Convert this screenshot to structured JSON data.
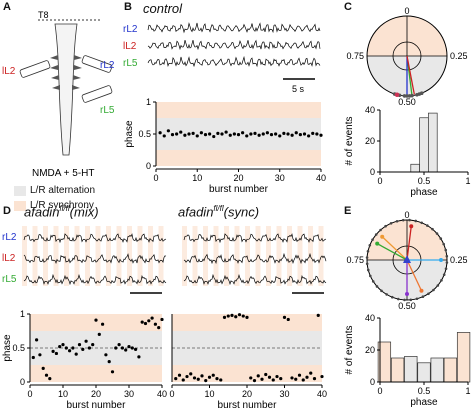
{
  "panels": {
    "A": "A",
    "B": "B",
    "C": "C",
    "D": "D",
    "E": "E"
  },
  "panelA": {
    "level": "T8",
    "left_label": "lL2",
    "right_top_label": "rL2",
    "right_bottom_label": "rL5",
    "condition": "NMDA + 5-HT",
    "legend": [
      {
        "label": "L/R alternation",
        "color": "#e8e8e8"
      },
      {
        "label": "L/R synchrony",
        "color": "#fbe3d2"
      }
    ]
  },
  "panelB": {
    "title": "control",
    "traces": [
      {
        "label": "rL2",
        "color": "#2233cc"
      },
      {
        "label": "lL2",
        "color": "#cc2222"
      },
      {
        "label": "rL5",
        "color": "#33aa33"
      }
    ],
    "scale_label": "5 s"
  },
  "panelD": {
    "title_mix": "afadin",
    "title_mix_sup": "fl/fl",
    "title_mix_suffix": "(mix)",
    "title_sync": "afadin",
    "title_sync_sup": "fl/fl",
    "title_sync_suffix": "(sync)",
    "traces": [
      {
        "label": "rL2",
        "color": "#2233cc"
      },
      {
        "label": "lL2",
        "color": "#cc2222"
      },
      {
        "label": "rL5",
        "color": "#33aa33"
      }
    ]
  },
  "polarC": {
    "top": "0",
    "left": "0.75",
    "right": "0.25",
    "bottom": "0.50"
  },
  "polarE": {
    "top": "0",
    "left": "0.75",
    "right": "0.25",
    "bottom": "0.50"
  },
  "colors": {
    "alternation": "#e8e8e8",
    "synchrony": "#fbe3d2",
    "rL2": "#2233cc",
    "lL2": "#cc2222",
    "rL5": "#33aa33"
  },
  "chart_data": [
    {
      "id": "B-phase",
      "type": "scatter",
      "xlabel": "burst number",
      "ylabel": "phase",
      "xlim": [
        0,
        40
      ],
      "ylim": [
        0,
        1
      ],
      "xticks": [
        0,
        10,
        20,
        30,
        40
      ],
      "yticks": [
        0,
        0.5,
        1
      ],
      "points": [
        [
          1,
          0.52
        ],
        [
          2,
          0.47
        ],
        [
          3,
          0.55
        ],
        [
          4,
          0.49
        ],
        [
          5,
          0.5
        ],
        [
          6,
          0.53
        ],
        [
          7,
          0.48
        ],
        [
          8,
          0.5
        ],
        [
          9,
          0.51
        ],
        [
          10,
          0.47
        ],
        [
          11,
          0.52
        ],
        [
          12,
          0.49
        ],
        [
          13,
          0.5
        ],
        [
          14,
          0.46
        ],
        [
          15,
          0.51
        ],
        [
          16,
          0.5
        ],
        [
          17,
          0.53
        ],
        [
          18,
          0.48
        ],
        [
          19,
          0.5
        ],
        [
          20,
          0.49
        ],
        [
          21,
          0.52
        ],
        [
          22,
          0.47
        ],
        [
          23,
          0.5
        ],
        [
          24,
          0.51
        ],
        [
          25,
          0.48
        ],
        [
          26,
          0.5
        ],
        [
          27,
          0.52
        ],
        [
          28,
          0.49
        ],
        [
          29,
          0.5
        ],
        [
          30,
          0.47
        ],
        [
          31,
          0.51
        ],
        [
          32,
          0.5
        ],
        [
          33,
          0.48
        ],
        [
          34,
          0.52
        ],
        [
          35,
          0.49
        ],
        [
          36,
          0.5
        ],
        [
          37,
          0.47
        ],
        [
          38,
          0.51
        ],
        [
          39,
          0.5
        ],
        [
          40,
          0.48
        ]
      ]
    },
    {
      "id": "C-hist",
      "type": "bar",
      "xlabel": "phase",
      "ylabel": "# of events",
      "xlim": [
        0,
        1
      ],
      "ylim": [
        0,
        40
      ],
      "yticks": [
        0,
        20,
        40
      ],
      "xticks": [
        0,
        0.5,
        1
      ],
      "bins": [
        0.4,
        0.5,
        0.6
      ],
      "values": [
        5,
        35,
        38
      ]
    },
    {
      "id": "D-mix-phase",
      "type": "scatter",
      "xlabel": "burst number",
      "ylabel": "phase",
      "xlim": [
        0,
        40
      ],
      "ylim": [
        0,
        1
      ],
      "xticks": [
        0,
        10,
        20,
        30,
        40
      ],
      "yticks": [
        0,
        0.5,
        1
      ],
      "points": [
        [
          1,
          0.36
        ],
        [
          2,
          0.62
        ],
        [
          3,
          0.4
        ],
        [
          4,
          0.2
        ],
        [
          5,
          0.1
        ],
        [
          6,
          0.05
        ],
        [
          7,
          0.45
        ],
        [
          8,
          0.42
        ],
        [
          9,
          0.52
        ],
        [
          10,
          0.55
        ],
        [
          11,
          0.5
        ],
        [
          12,
          0.46
        ],
        [
          13,
          0.5
        ],
        [
          14,
          0.41
        ],
        [
          15,
          0.55
        ],
        [
          16,
          0.48
        ],
        [
          17,
          0.6
        ],
        [
          18,
          0.5
        ],
        [
          19,
          0.55
        ],
        [
          20,
          0.91
        ],
        [
          21,
          0.7
        ],
        [
          22,
          0.85
        ],
        [
          23,
          0.4
        ],
        [
          24,
          0.3
        ],
        [
          25,
          0.15
        ],
        [
          26,
          0.5
        ],
        [
          27,
          0.55
        ],
        [
          28,
          0.5
        ],
        [
          29,
          0.47
        ],
        [
          30,
          0.52
        ],
        [
          31,
          0.5
        ],
        [
          32,
          0.48
        ],
        [
          33,
          0.37
        ],
        [
          34,
          0.88
        ],
        [
          35,
          0.86
        ],
        [
          36,
          0.9
        ],
        [
          37,
          0.94
        ],
        [
          38,
          0.85
        ],
        [
          39,
          0.8
        ],
        [
          40,
          0.92
        ]
      ]
    },
    {
      "id": "D-sync-phase",
      "type": "scatter",
      "xlabel": "burst number",
      "ylabel": "phase",
      "xlim": [
        0,
        40
      ],
      "ylim": [
        0,
        1
      ],
      "xticks": [
        0,
        10,
        20,
        30,
        40
      ],
      "yticks": [
        0,
        0.5,
        1
      ],
      "points": [
        [
          1,
          0.05
        ],
        [
          2,
          0.1
        ],
        [
          3,
          0.03
        ],
        [
          4,
          0.08
        ],
        [
          5,
          0.12
        ],
        [
          6,
          0.06
        ],
        [
          7,
          0.04
        ],
        [
          8,
          0.09
        ],
        [
          9,
          0.02
        ],
        [
          10,
          0.07
        ],
        [
          11,
          0.1
        ],
        [
          12,
          0.05
        ],
        [
          13,
          0.03
        ],
        [
          14,
          0.95
        ],
        [
          15,
          0.97
        ],
        [
          16,
          0.98
        ],
        [
          17,
          0.96
        ],
        [
          18,
          0.99
        ],
        [
          19,
          0.97
        ],
        [
          20,
          0.95
        ],
        [
          21,
          0.06
        ],
        [
          22,
          0.02
        ],
        [
          23,
          0.09
        ],
        [
          24,
          0.04
        ],
        [
          25,
          0.11
        ],
        [
          26,
          0.07
        ],
        [
          27,
          0.03
        ],
        [
          28,
          0.08
        ],
        [
          29,
          0.05
        ],
        [
          30,
          0.95
        ],
        [
          31,
          0.92
        ],
        [
          32,
          0.06
        ],
        [
          33,
          0.04
        ],
        [
          34,
          0.1
        ],
        [
          35,
          0.03
        ],
        [
          36,
          0.07
        ],
        [
          37,
          0.13
        ],
        [
          38,
          0.05
        ],
        [
          39,
          0.98
        ],
        [
          40,
          0.08
        ]
      ]
    },
    {
      "id": "E-hist",
      "type": "bar",
      "xlabel": "phase",
      "ylabel": "# of events",
      "xlim": [
        0,
        1
      ],
      "ylim": [
        0,
        40
      ],
      "yticks": [
        0,
        20,
        40
      ],
      "xticks": [
        0,
        0.5,
        1
      ],
      "bins": [
        0.05,
        0.2,
        0.35,
        0.5,
        0.65,
        0.8,
        0.95
      ],
      "values": [
        25,
        15,
        16,
        12,
        15,
        15,
        31
      ]
    }
  ]
}
